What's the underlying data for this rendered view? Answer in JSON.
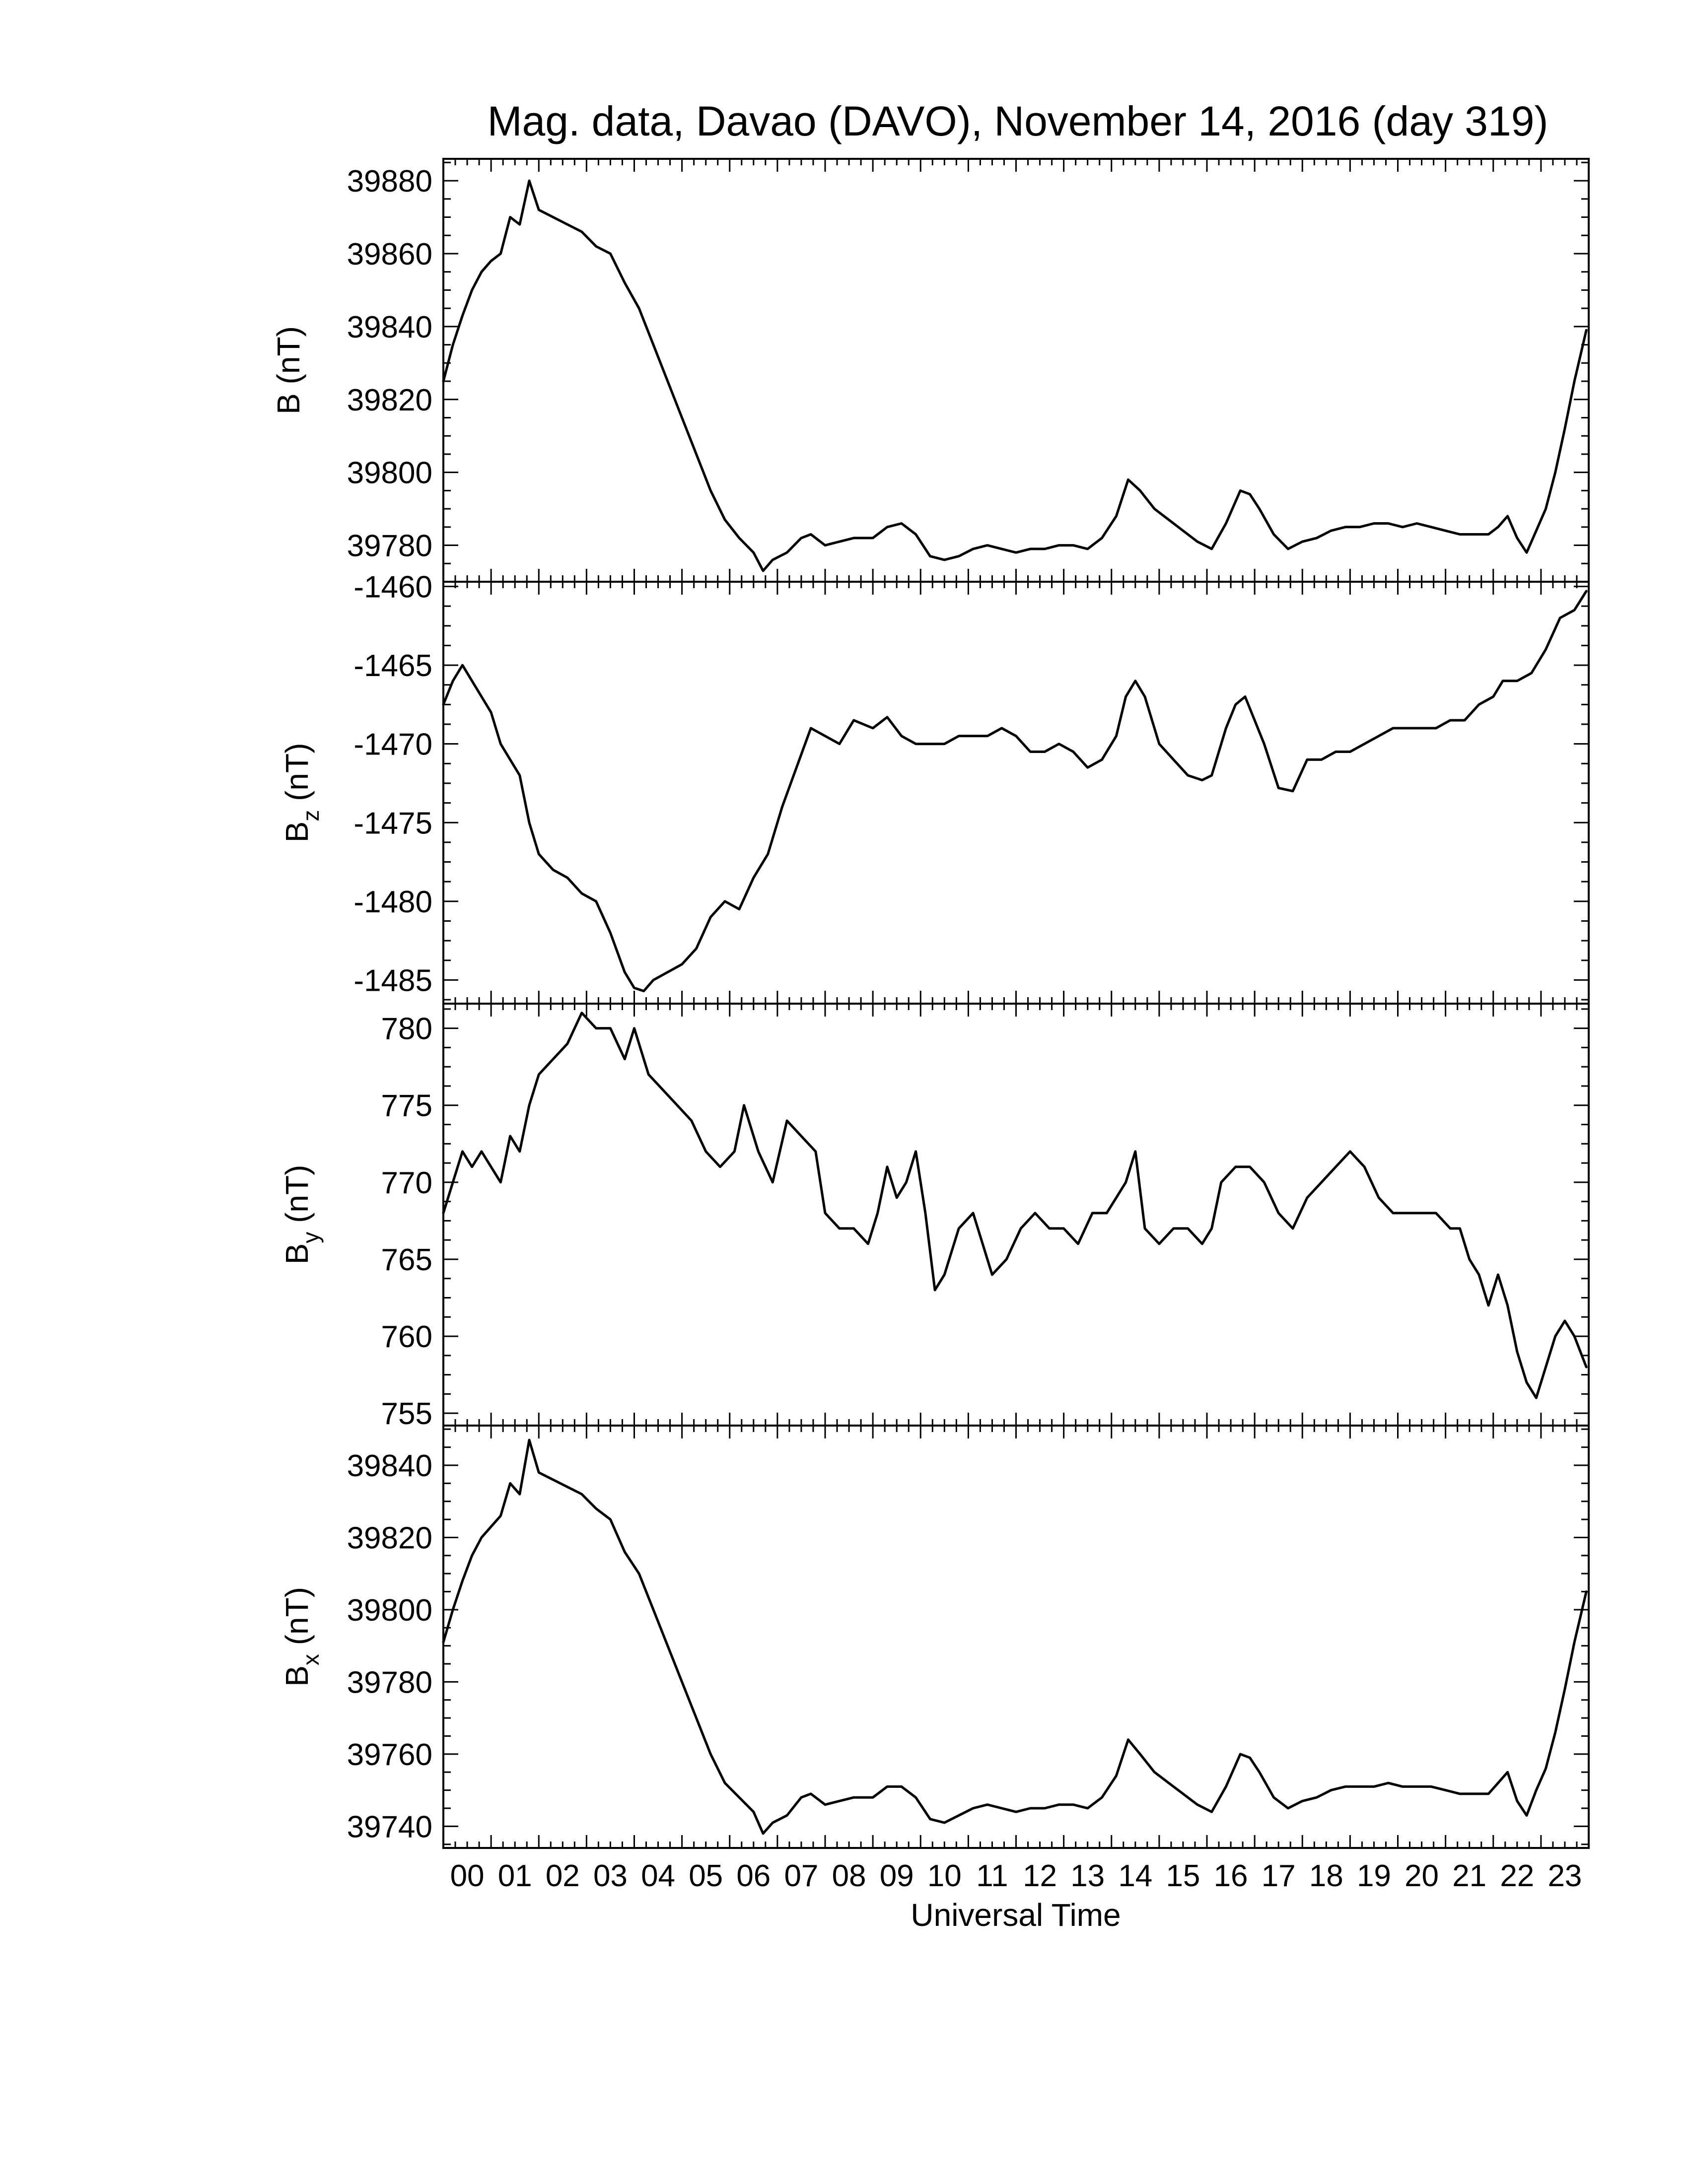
{
  "title": "Mag. data, Davao (DAVO), November 14, 2016 (day 319)",
  "x_axis_label": "Universal Time",
  "x_tick_labels": [
    "00",
    "01",
    "02",
    "03",
    "04",
    "05",
    "06",
    "07",
    "08",
    "09",
    "10",
    "11",
    "12",
    "13",
    "14",
    "15",
    "16",
    "17",
    "18",
    "19",
    "20",
    "21",
    "22",
    "23"
  ],
  "chart_data": [
    {
      "type": "line",
      "panel": "B",
      "ylabel": "B (nT)",
      "ylabel_main": "B (nT)",
      "ylabel_sub": "",
      "ylim": [
        39770,
        39886
      ],
      "yticks": [
        39780,
        39800,
        39820,
        39840,
        39860,
        39880
      ],
      "ytick_labels": [
        "39780",
        "39800",
        "39820",
        "39840",
        "39860",
        "39880"
      ],
      "xlim": [
        0,
        24
      ],
      "x": [
        0,
        0.2,
        0.4,
        0.6,
        0.8,
        1.0,
        1.2,
        1.4,
        1.6,
        1.8,
        2.0,
        2.3,
        2.6,
        2.9,
        3.2,
        3.5,
        3.8,
        4.1,
        4.4,
        4.7,
        5.0,
        5.3,
        5.6,
        5.9,
        6.2,
        6.5,
        6.7,
        6.9,
        7.2,
        7.5,
        7.7,
        8.0,
        8.3,
        8.6,
        9.0,
        9.3,
        9.6,
        9.9,
        10.2,
        10.5,
        10.8,
        11.1,
        11.4,
        11.7,
        12.0,
        12.3,
        12.6,
        12.9,
        13.2,
        13.5,
        13.8,
        14.1,
        14.35,
        14.6,
        14.9,
        15.2,
        15.5,
        15.8,
        16.1,
        16.4,
        16.7,
        16.9,
        17.1,
        17.4,
        17.7,
        18.0,
        18.3,
        18.6,
        18.9,
        19.2,
        19.5,
        19.8,
        20.1,
        20.4,
        20.7,
        21.0,
        21.3,
        21.6,
        21.9,
        22.1,
        22.3,
        22.5,
        22.7,
        22.9,
        23.1,
        23.3,
        23.5,
        23.7,
        23.95
      ],
      "y": [
        39825,
        39835,
        39843,
        39850,
        39855,
        39858,
        39860,
        39870,
        39868,
        39880,
        39872,
        39870,
        39868,
        39866,
        39862,
        39860,
        39852,
        39845,
        39835,
        39825,
        39815,
        39805,
        39795,
        39787,
        39782,
        39778,
        39773,
        39776,
        39778,
        39782,
        39783,
        39780,
        39781,
        39782,
        39782,
        39785,
        39786,
        39783,
        39777,
        39776,
        39777,
        39779,
        39780,
        39779,
        39778,
        39779,
        39779,
        39780,
        39780,
        39779,
        39782,
        39788,
        39798,
        39795,
        39790,
        39787,
        39784,
        39781,
        39779,
        39786,
        39795,
        39794,
        39790,
        39783,
        39779,
        39781,
        39782,
        39784,
        39785,
        39785,
        39786,
        39786,
        39785,
        39786,
        39785,
        39784,
        39783,
        39783,
        39783,
        39785,
        39788,
        39782,
        39778,
        39784,
        39790,
        39800,
        39812,
        39825,
        39839
      ]
    },
    {
      "type": "line",
      "panel": "Bz",
      "ylabel": "Bz (nT)",
      "ylabel_main": "B",
      "ylabel_sub": "z",
      "ylabel_unit": " (nT)",
      "ylim": [
        -1486.5,
        -1459.7
      ],
      "yticks": [
        -1485,
        -1480,
        -1475,
        -1470,
        -1465,
        -1460
      ],
      "ytick_labels": [
        "-1485",
        "-1480",
        "-1475",
        "-1470",
        "-1465",
        "-1460"
      ],
      "xlim": [
        0,
        24
      ],
      "x": [
        0,
        0.2,
        0.4,
        0.6,
        0.8,
        1.0,
        1.2,
        1.4,
        1.6,
        1.8,
        2.0,
        2.3,
        2.6,
        2.9,
        3.2,
        3.5,
        3.8,
        4.0,
        4.2,
        4.4,
        4.7,
        5.0,
        5.3,
        5.6,
        5.9,
        6.2,
        6.5,
        6.8,
        7.1,
        7.4,
        7.7,
        8.0,
        8.3,
        8.6,
        9.0,
        9.3,
        9.6,
        9.9,
        10.2,
        10.5,
        10.8,
        11.1,
        11.4,
        11.7,
        12.0,
        12.3,
        12.6,
        12.9,
        13.2,
        13.5,
        13.8,
        14.1,
        14.3,
        14.5,
        14.7,
        15.0,
        15.3,
        15.6,
        15.9,
        16.1,
        16.4,
        16.6,
        16.8,
        17.0,
        17.2,
        17.5,
        17.8,
        18.1,
        18.4,
        18.7,
        19.0,
        19.3,
        19.6,
        19.9,
        20.2,
        20.5,
        20.8,
        21.1,
        21.4,
        21.7,
        22.0,
        22.2,
        22.5,
        22.8,
        23.1,
        23.4,
        23.7,
        23.95
      ],
      "y": [
        -1467.5,
        -1466,
        -1465,
        -1466,
        -1467,
        -1468,
        -1470,
        -1471,
        -1472,
        -1475,
        -1477,
        -1478,
        -1478.5,
        -1479.5,
        -1480,
        -1482,
        -1484.5,
        -1485.5,
        -1485.7,
        -1485,
        -1484.5,
        -1484,
        -1483,
        -1481,
        -1480,
        -1480.5,
        -1478.5,
        -1477,
        -1474,
        -1471.5,
        -1469,
        -1469.5,
        -1470,
        -1468.5,
        -1469,
        -1468.3,
        -1469.5,
        -1470,
        -1470,
        -1470,
        -1469.5,
        -1469.5,
        -1469.5,
        -1469,
        -1469.5,
        -1470.5,
        -1470.5,
        -1470,
        -1470.5,
        -1471.5,
        -1471,
        -1469.5,
        -1467,
        -1466,
        -1467,
        -1470,
        -1471,
        -1472,
        -1472.3,
        -1472,
        -1469,
        -1467.5,
        -1467,
        -1468.5,
        -1470,
        -1472.8,
        -1473,
        -1471,
        -1471,
        -1470.5,
        -1470.5,
        -1470,
        -1469.5,
        -1469,
        -1469,
        -1469,
        -1469,
        -1468.5,
        -1468.5,
        -1467.5,
        -1467,
        -1466,
        -1466,
        -1465.5,
        -1464,
        -1462,
        -1461.5,
        -1460.3
      ]
    },
    {
      "type": "line",
      "panel": "By",
      "ylabel": "By (nT)",
      "ylabel_main": "B",
      "ylabel_sub": "y",
      "ylabel_unit": " (nT)",
      "ylim": [
        754.2,
        781.6
      ],
      "yticks": [
        755,
        760,
        765,
        770,
        775,
        780
      ],
      "ytick_labels": [
        "755",
        "760",
        "765",
        "770",
        "775",
        "780"
      ],
      "xlim": [
        0,
        24
      ],
      "x": [
        0,
        0.2,
        0.4,
        0.6,
        0.8,
        1.0,
        1.2,
        1.4,
        1.6,
        1.8,
        2.0,
        2.3,
        2.6,
        2.9,
        3.2,
        3.5,
        3.8,
        4.0,
        4.3,
        4.6,
        4.9,
        5.2,
        5.5,
        5.8,
        6.1,
        6.3,
        6.6,
        6.9,
        7.2,
        7.5,
        7.8,
        8.0,
        8.3,
        8.6,
        8.9,
        9.1,
        9.3,
        9.5,
        9.7,
        9.9,
        10.1,
        10.3,
        10.5,
        10.8,
        11.1,
        11.3,
        11.5,
        11.8,
        12.1,
        12.4,
        12.7,
        13.0,
        13.3,
        13.6,
        13.9,
        14.1,
        14.3,
        14.5,
        14.7,
        15.0,
        15.3,
        15.6,
        15.9,
        16.1,
        16.3,
        16.6,
        16.9,
        17.2,
        17.5,
        17.8,
        18.1,
        18.4,
        18.7,
        19.0,
        19.3,
        19.6,
        19.9,
        20.2,
        20.5,
        20.8,
        21.1,
        21.3,
        21.5,
        21.7,
        21.9,
        22.1,
        22.3,
        22.5,
        22.7,
        22.9,
        23.1,
        23.3,
        23.5,
        23.7,
        23.95
      ],
      "y": [
        768,
        770,
        772,
        771,
        772,
        771,
        770,
        773,
        772,
        775,
        777,
        778,
        779,
        781,
        780,
        780,
        778,
        780,
        777,
        776,
        775,
        774,
        772,
        771,
        772,
        775,
        772,
        770,
        774,
        773,
        772,
        768,
        767,
        767,
        766,
        768,
        771,
        769,
        770,
        772,
        768,
        763,
        764,
        767,
        768,
        766,
        764,
        765,
        767,
        768,
        767,
        767,
        766,
        768,
        768,
        769,
        770,
        772,
        767,
        766,
        767,
        767,
        766,
        767,
        770,
        771,
        771,
        770,
        768,
        767,
        769,
        770,
        771,
        772,
        771,
        769,
        768,
        768,
        768,
        768,
        767,
        767,
        765,
        764,
        762,
        764,
        762,
        759,
        757,
        756,
        758,
        760,
        761,
        760,
        758
      ]
    },
    {
      "type": "line",
      "panel": "Bx",
      "ylabel": "Bx (nT)",
      "ylabel_main": "B",
      "ylabel_sub": "x",
      "ylabel_unit": " (nT)",
      "ylim": [
        39734,
        39851
      ],
      "yticks": [
        39740,
        39760,
        39780,
        39800,
        39820,
        39840
      ],
      "ytick_labels": [
        "39740",
        "39760",
        "39780",
        "39800",
        "39820",
        "39840"
      ],
      "xlim": [
        0,
        24
      ],
      "x": [
        0,
        0.2,
        0.4,
        0.6,
        0.8,
        1.0,
        1.2,
        1.4,
        1.6,
        1.8,
        2.0,
        2.3,
        2.6,
        2.9,
        3.2,
        3.5,
        3.8,
        4.1,
        4.4,
        4.7,
        5.0,
        5.3,
        5.6,
        5.9,
        6.2,
        6.5,
        6.7,
        6.9,
        7.2,
        7.5,
        7.7,
        8.0,
        8.3,
        8.6,
        9.0,
        9.3,
        9.6,
        9.9,
        10.2,
        10.5,
        10.8,
        11.1,
        11.4,
        11.7,
        12.0,
        12.3,
        12.6,
        12.9,
        13.2,
        13.5,
        13.8,
        14.1,
        14.35,
        14.6,
        14.9,
        15.2,
        15.5,
        15.8,
        16.1,
        16.4,
        16.7,
        16.9,
        17.1,
        17.4,
        17.7,
        18.0,
        18.3,
        18.6,
        18.9,
        19.2,
        19.5,
        19.8,
        20.1,
        20.4,
        20.7,
        21.0,
        21.3,
        21.6,
        21.9,
        22.1,
        22.3,
        22.5,
        22.7,
        22.9,
        23.1,
        23.3,
        23.5,
        23.7,
        23.95
      ],
      "y": [
        39791,
        39800,
        39808,
        39815,
        39820,
        39823,
        39826,
        39835,
        39832,
        39847,
        39838,
        39836,
        39834,
        39832,
        39828,
        39825,
        39816,
        39810,
        39800,
        39790,
        39780,
        39770,
        39760,
        39752,
        39748,
        39744,
        39738,
        39741,
        39743,
        39748,
        39749,
        39746,
        39747,
        39748,
        39748,
        39751,
        39751,
        39748,
        39742,
        39741,
        39743,
        39745,
        39746,
        39745,
        39744,
        39745,
        39745,
        39746,
        39746,
        39745,
        39748,
        39754,
        39764,
        39760,
        39755,
        39752,
        39749,
        39746,
        39744,
        39751,
        39760,
        39759,
        39755,
        39748,
        39745,
        39747,
        39748,
        39750,
        39751,
        39751,
        39751,
        39752,
        39751,
        39751,
        39751,
        39750,
        39749,
        39749,
        39749,
        39752,
        39755,
        39747,
        39743,
        39750,
        39756,
        39766,
        39778,
        39791,
        39805
      ]
    }
  ]
}
